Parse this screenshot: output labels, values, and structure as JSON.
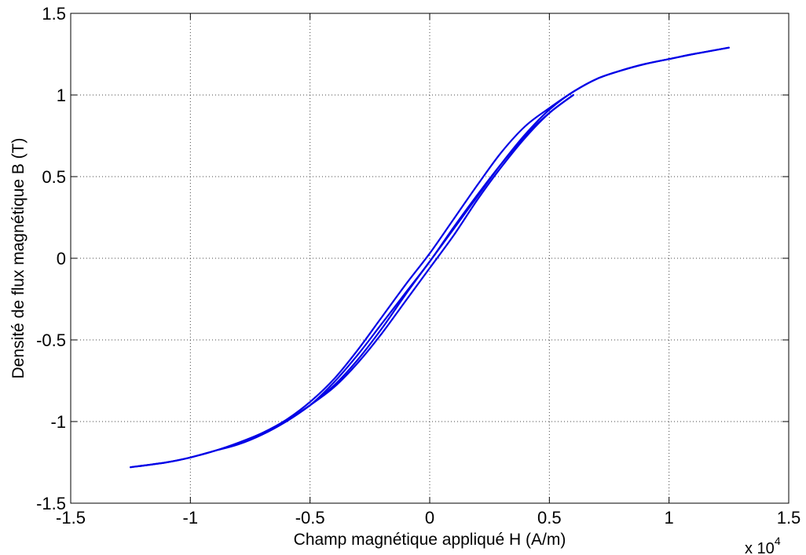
{
  "chart_data": {
    "type": "line",
    "title": "",
    "xlabel": "Champ magnétique appliqué H (A/m)",
    "ylabel": "Densité de flux magnétique B (T)",
    "x_multiplier_label": {
      "base": "x 10",
      "exponent": "4"
    },
    "xlim": [
      -15000,
      15000
    ],
    "ylim": [
      -1.5,
      1.5
    ],
    "x_ticks": [
      -1.5,
      -1,
      -0.5,
      0,
      0.5,
      1,
      1.5
    ],
    "x_tick_labels": [
      "-1.5",
      "-1",
      "-0.5",
      "0",
      "0.5",
      "1",
      "1.5"
    ],
    "y_ticks": [
      -1.5,
      -1,
      -0.5,
      0,
      0.5,
      1,
      1.5
    ],
    "y_tick_labels": [
      "-1.5",
      "-1",
      "-0.5",
      "0",
      "0.5",
      "1",
      "1.5"
    ],
    "grid": true,
    "line_color": "#0000e6",
    "series": [
      {
        "x": [
          -12500,
          -11000,
          -10000,
          -9000,
          -8000,
          -7000,
          -6000,
          -5000,
          -4000,
          -3000,
          -2000,
          -1000,
          0,
          1000,
          2000,
          3000,
          4000,
          5000,
          6000,
          7000,
          8000,
          9000,
          10000,
          11000,
          12500
        ],
        "y": [
          -1.28,
          -1.25,
          -1.22,
          -1.18,
          -1.13,
          -1.07,
          -0.99,
          -0.88,
          -0.74,
          -0.56,
          -0.36,
          -0.16,
          0.03,
          0.24,
          0.45,
          0.65,
          0.81,
          0.92,
          1.02,
          1.1,
          1.15,
          1.19,
          1.22,
          1.25,
          1.29
        ]
      },
      {
        "x": [
          12500,
          11000,
          10000,
          9000,
          8000,
          7000,
          6000,
          5000,
          4000,
          3000,
          2000,
          1000,
          0,
          -1000,
          -2000,
          -3000,
          -4000,
          -5000,
          -6000,
          -7000,
          -8000,
          -9000,
          -10000,
          -11000,
          -12500
        ],
        "y": [
          1.29,
          1.25,
          1.22,
          1.19,
          1.15,
          1.1,
          1.02,
          0.91,
          0.76,
          0.58,
          0.38,
          0.18,
          -0.02,
          -0.22,
          -0.43,
          -0.62,
          -0.78,
          -0.9,
          -1.0,
          -1.08,
          -1.14,
          -1.18,
          -1.22,
          -1.25,
          -1.28
        ]
      },
      {
        "x": [
          -6000,
          -5000,
          -4000,
          -3000,
          -2000,
          -1000,
          0,
          1000,
          2000,
          3000,
          4000,
          5000,
          6000
        ],
        "y": [
          -1.0,
          -0.9,
          -0.76,
          -0.59,
          -0.4,
          -0.21,
          -0.02,
          0.19,
          0.39,
          0.58,
          0.75,
          0.89,
          1.0
        ]
      },
      {
        "x": [
          6000,
          5000,
          4000,
          3000,
          2000,
          1000,
          0,
          -1000,
          -2000,
          -3000,
          -4000,
          -5000,
          -6000
        ],
        "y": [
          1.0,
          0.89,
          0.74,
          0.56,
          0.36,
          0.14,
          -0.06,
          -0.26,
          -0.46,
          -0.64,
          -0.79,
          -0.9,
          -1.0
        ]
      }
    ]
  }
}
